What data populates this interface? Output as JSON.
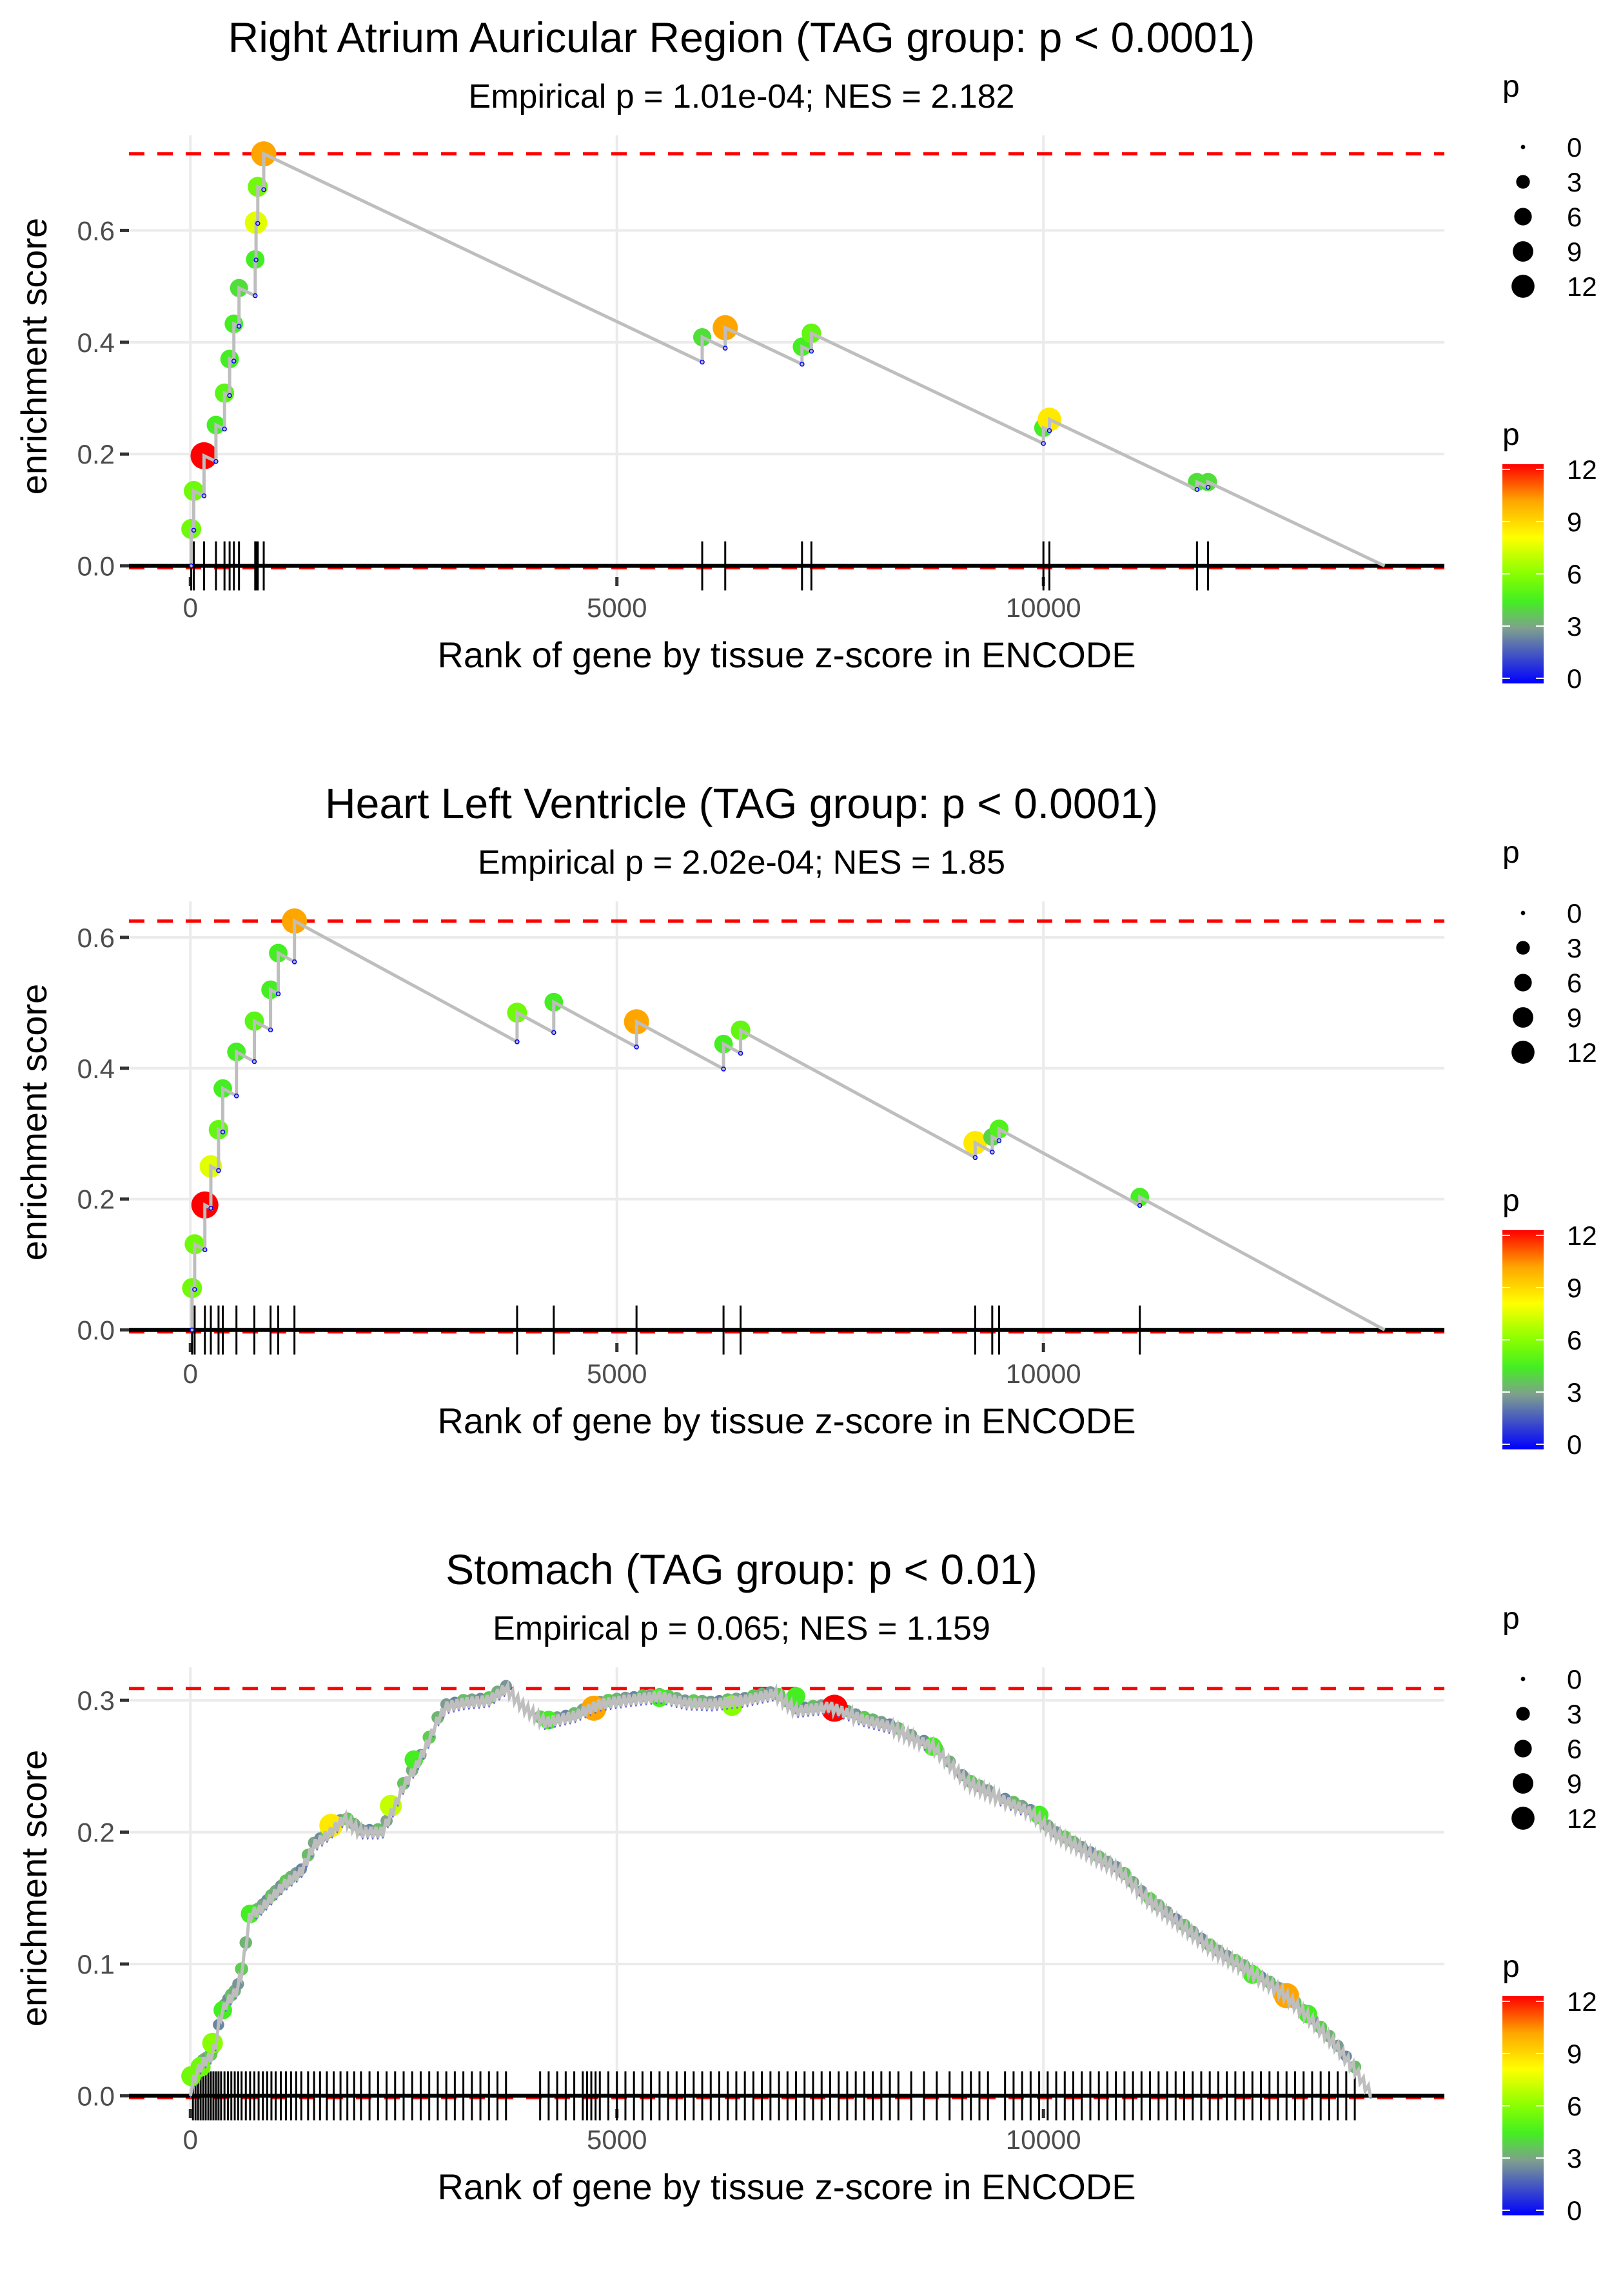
{
  "chart_data": [
    {
      "type": "line",
      "title": "Right Atrium Auricular Region (TAG group: p < 0.0001)",
      "subtitle": "Empirical p = 1.01e-04; NES = 2.182",
      "xlabel": "Rank of gene by tissue z-score in ENCODE",
      "ylabel": "enrichment score",
      "xlim": [
        -720,
        14700
      ],
      "ylim": [
        -0.02,
        0.77
      ],
      "x_ticks": [
        0,
        5000,
        10000
      ],
      "x_tick_labels": [
        "0",
        "5000",
        "10000"
      ],
      "y_ticks": [
        0.0,
        0.2,
        0.4,
        0.6
      ],
      "y_tick_labels": [
        "0.0",
        "0.2",
        "0.4",
        "0.6"
      ],
      "max_es": 0.737,
      "end_rank": 14000,
      "grid": true,
      "hits": [
        {
          "rank": 10,
          "es": 0.066,
          "p": 5.5
        },
        {
          "rank": 40,
          "es": 0.134,
          "p": 5.5
        },
        {
          "rank": 160,
          "es": 0.197,
          "p": 12
        },
        {
          "rank": 300,
          "es": 0.252,
          "p": 4.5
        },
        {
          "rank": 400,
          "es": 0.309,
          "p": 5
        },
        {
          "rank": 460,
          "es": 0.37,
          "p": 4.5
        },
        {
          "rank": 510,
          "es": 0.433,
          "p": 4.5
        },
        {
          "rank": 570,
          "es": 0.497,
          "p": 4.2
        },
        {
          "rank": 760,
          "es": 0.548,
          "p": 4.5
        },
        {
          "rank": 770,
          "es": 0.614,
          "p": 7.5
        },
        {
          "rank": 790,
          "es": 0.678,
          "p": 5.5
        },
        {
          "rank": 860,
          "es": 0.737,
          "p": 10
        },
        {
          "rank": 6000,
          "es": 0.409,
          "p": 4.2
        },
        {
          "rank": 6270,
          "es": 0.426,
          "p": 10
        },
        {
          "rank": 7170,
          "es": 0.392,
          "p": 4.5
        },
        {
          "rank": 7280,
          "es": 0.416,
          "p": 5.2
        },
        {
          "rank": 10000,
          "es": 0.247,
          "p": 4.5
        },
        {
          "rank": 10070,
          "es": 0.262,
          "p": 8.5
        },
        {
          "rank": 11800,
          "es": 0.15,
          "p": 4.2
        },
        {
          "rank": 11930,
          "es": 0.15,
          "p": 4.2
        }
      ]
    },
    {
      "type": "line",
      "title": "Heart Left Ventricle (TAG group: p < 0.0001)",
      "subtitle": "Empirical p = 2.02e-04; NES = 1.85",
      "xlabel": "Rank of gene by tissue z-score in ENCODE",
      "ylabel": "enrichment score",
      "xlim": [
        -720,
        14700
      ],
      "ylim": [
        -0.02,
        0.655
      ],
      "x_ticks": [
        0,
        5000,
        10000
      ],
      "x_tick_labels": [
        "0",
        "5000",
        "10000"
      ],
      "y_ticks": [
        0.0,
        0.2,
        0.4,
        0.6
      ],
      "y_tick_labels": [
        "0.0",
        "0.2",
        "0.4",
        "0.6"
      ],
      "max_es": 0.625,
      "end_rank": 14000,
      "grid": true,
      "hits": [
        {
          "rank": 20,
          "es": 0.064,
          "p": 5.5
        },
        {
          "rank": 50,
          "es": 0.131,
          "p": 5.5
        },
        {
          "rank": 170,
          "es": 0.191,
          "p": 12
        },
        {
          "rank": 240,
          "es": 0.25,
          "p": 7.5
        },
        {
          "rank": 330,
          "es": 0.306,
          "p": 5.2
        },
        {
          "rank": 380,
          "es": 0.369,
          "p": 4.5
        },
        {
          "rank": 540,
          "es": 0.425,
          "p": 4.5
        },
        {
          "rank": 750,
          "es": 0.472,
          "p": 5
        },
        {
          "rank": 940,
          "es": 0.52,
          "p": 4.5
        },
        {
          "rank": 1030,
          "es": 0.576,
          "p": 4.5
        },
        {
          "rank": 1220,
          "es": 0.625,
          "p": 10
        },
        {
          "rank": 3830,
          "es": 0.485,
          "p": 5.5
        },
        {
          "rank": 4260,
          "es": 0.501,
          "p": 4.5
        },
        {
          "rank": 5230,
          "es": 0.471,
          "p": 10
        },
        {
          "rank": 6250,
          "es": 0.437,
          "p": 4.5
        },
        {
          "rank": 6450,
          "es": 0.458,
          "p": 5.2
        },
        {
          "rank": 9200,
          "es": 0.286,
          "p": 8.5
        },
        {
          "rank": 9400,
          "es": 0.295,
          "p": 4
        },
        {
          "rank": 9480,
          "es": 0.307,
          "p": 4.8
        },
        {
          "rank": 11130,
          "es": 0.203,
          "p": 4.5
        }
      ]
    },
    {
      "type": "line",
      "title": "Stomach (TAG group: p < 0.01)",
      "subtitle": "Empirical p = 0.065; NES = 1.159",
      "xlabel": "Rank of gene by tissue z-score in ENCODE",
      "ylabel": "enrichment score",
      "xlim": [
        -720,
        14700
      ],
      "ylim": [
        -0.01,
        0.325
      ],
      "x_ticks": [
        0,
        5000,
        10000
      ],
      "x_tick_labels": [
        "0",
        "5000",
        "10000"
      ],
      "y_ticks": [
        0.0,
        0.1,
        0.2,
        0.3
      ],
      "y_tick_labels": [
        "0.0",
        "0.1",
        "0.2",
        "0.3"
      ],
      "max_es": 0.309,
      "end_rank": 13850,
      "grid": true,
      "curve": [
        [
          0,
          0.0
        ],
        [
          50,
          0.015
        ],
        [
          150,
          0.025
        ],
        [
          250,
          0.03
        ],
        [
          300,
          0.04
        ],
        [
          350,
          0.06
        ],
        [
          420,
          0.07
        ],
        [
          550,
          0.08
        ],
        [
          620,
          0.1
        ],
        [
          700,
          0.138
        ],
        [
          800,
          0.14
        ],
        [
          950,
          0.15
        ],
        [
          1100,
          0.16
        ],
        [
          1300,
          0.17
        ],
        [
          1450,
          0.19
        ],
        [
          1650,
          0.2
        ],
        [
          1800,
          0.21
        ],
        [
          2000,
          0.2
        ],
        [
          2250,
          0.2
        ],
        [
          2400,
          0.22
        ],
        [
          2500,
          0.235
        ],
        [
          2650,
          0.25
        ],
        [
          2800,
          0.27
        ],
        [
          2900,
          0.285
        ],
        [
          3000,
          0.295
        ],
        [
          3200,
          0.298
        ],
        [
          3500,
          0.3
        ],
        [
          3700,
          0.309
        ],
        [
          3900,
          0.295
        ],
        [
          4150,
          0.283
        ],
        [
          4500,
          0.288
        ],
        [
          4800,
          0.297
        ],
        [
          5100,
          0.3
        ],
        [
          5500,
          0.303
        ],
        [
          5800,
          0.298
        ],
        [
          6100,
          0.297
        ],
        [
          6500,
          0.3
        ],
        [
          6850,
          0.305
        ],
        [
          7100,
          0.292
        ],
        [
          7500,
          0.295
        ],
        [
          7900,
          0.285
        ],
        [
          8200,
          0.28
        ],
        [
          8500,
          0.27
        ],
        [
          8700,
          0.265
        ],
        [
          9100,
          0.238
        ],
        [
          9500,
          0.225
        ],
        [
          9850,
          0.215
        ],
        [
          10100,
          0.2
        ],
        [
          10500,
          0.185
        ],
        [
          10900,
          0.17
        ],
        [
          11200,
          0.15
        ],
        [
          11600,
          0.13
        ],
        [
          12000,
          0.11
        ],
        [
          12400,
          0.095
        ],
        [
          12800,
          0.078
        ],
        [
          13100,
          0.06
        ],
        [
          13400,
          0.04
        ],
        [
          13650,
          0.02
        ],
        [
          13850,
          0.0
        ]
      ],
      "highlight_hits": [
        {
          "rank": 10,
          "es": 0.015,
          "p": 5.5
        },
        {
          "rank": 120,
          "es": 0.022,
          "p": 5.5
        },
        {
          "rank": 260,
          "es": 0.04,
          "p": 6
        },
        {
          "rank": 380,
          "es": 0.065,
          "p": 4.5
        },
        {
          "rank": 700,
          "es": 0.138,
          "p": 4.5
        },
        {
          "rank": 1650,
          "es": 0.205,
          "p": 8.5
        },
        {
          "rank": 2350,
          "es": 0.22,
          "p": 7
        },
        {
          "rank": 2620,
          "es": 0.255,
          "p": 4.5
        },
        {
          "rank": 4200,
          "es": 0.285,
          "p": 4.5
        },
        {
          "rank": 4730,
          "es": 0.294,
          "p": 10
        },
        {
          "rank": 5500,
          "es": 0.302,
          "p": 4.5
        },
        {
          "rank": 6350,
          "es": 0.296,
          "p": 6
        },
        {
          "rank": 7100,
          "es": 0.303,
          "p": 4.5
        },
        {
          "rank": 7550,
          "es": 0.294,
          "p": 12
        },
        {
          "rank": 8700,
          "es": 0.265,
          "p": 4.5
        },
        {
          "rank": 9950,
          "es": 0.213,
          "p": 4.5
        },
        {
          "rank": 12450,
          "es": 0.092,
          "p": 4.5
        },
        {
          "rank": 12850,
          "es": 0.076,
          "p": 10
        },
        {
          "rank": 13100,
          "es": 0.062,
          "p": 4.5
        }
      ],
      "hit_ranks_approx": [
        30,
        60,
        90,
        120,
        150,
        180,
        210,
        240,
        270,
        300,
        330,
        360,
        400,
        440,
        480,
        520,
        560,
        600,
        650,
        700,
        750,
        800,
        850,
        900,
        950,
        1000,
        1060,
        1120,
        1180,
        1240,
        1300,
        1380,
        1450,
        1520,
        1600,
        1680,
        1760,
        1840,
        1920,
        2000,
        2100,
        2200,
        2300,
        2400,
        2500,
        2600,
        2700,
        2800,
        2900,
        3000,
        3100,
        3200,
        3300,
        3400,
        3500,
        3600,
        3700,
        4100,
        4200,
        4300,
        4400,
        4500,
        4600,
        4650,
        4700,
        4750,
        4800,
        4900,
        5000,
        5100,
        5200,
        5300,
        5400,
        5500,
        5600,
        5700,
        5800,
        5900,
        6000,
        6100,
        6200,
        6300,
        6400,
        6500,
        6600,
        6700,
        6800,
        6900,
        7000,
        7100,
        7200,
        7300,
        7400,
        7500,
        7600,
        7700,
        7800,
        7900,
        8000,
        8100,
        8200,
        8300,
        8450,
        8600,
        8750,
        8900,
        9050,
        9150,
        9250,
        9350,
        9550,
        9650,
        9750,
        9850,
        9950,
        10050,
        10150,
        10250,
        10350,
        10450,
        10550,
        10650,
        10750,
        10850,
        10950,
        11050,
        11150,
        11250,
        11350,
        11450,
        11550,
        11650,
        11750,
        11850,
        11950,
        12050,
        12150,
        12250,
        12350,
        12450,
        12550,
        12650,
        12750,
        12850,
        12950,
        13050,
        13150,
        13250,
        13350,
        13450,
        13550,
        13650
      ]
    }
  ],
  "legend": {
    "size_title": "p",
    "size_values": [
      "0",
      "3",
      "6",
      "9",
      "12"
    ],
    "color_title": "p",
    "color_values": [
      "12",
      "9",
      "6",
      "3",
      "0"
    ],
    "color_scale": [
      {
        "p": 0,
        "color": "#0000ff"
      },
      {
        "p": 3,
        "color": "#7f9f8f"
      },
      {
        "p": 4.5,
        "color": "#44ee22"
      },
      {
        "p": 6,
        "color": "#88ff00"
      },
      {
        "p": 8,
        "color": "#ffff00"
      },
      {
        "p": 10,
        "color": "#ffa500"
      },
      {
        "p": 12,
        "color": "#ff0000"
      }
    ]
  },
  "colors": {
    "es_line": "#bebebe",
    "max_line": "#ff0000",
    "zero_line": "#000000",
    "grid": "#ebebeb",
    "hit_tick": "#000000"
  }
}
